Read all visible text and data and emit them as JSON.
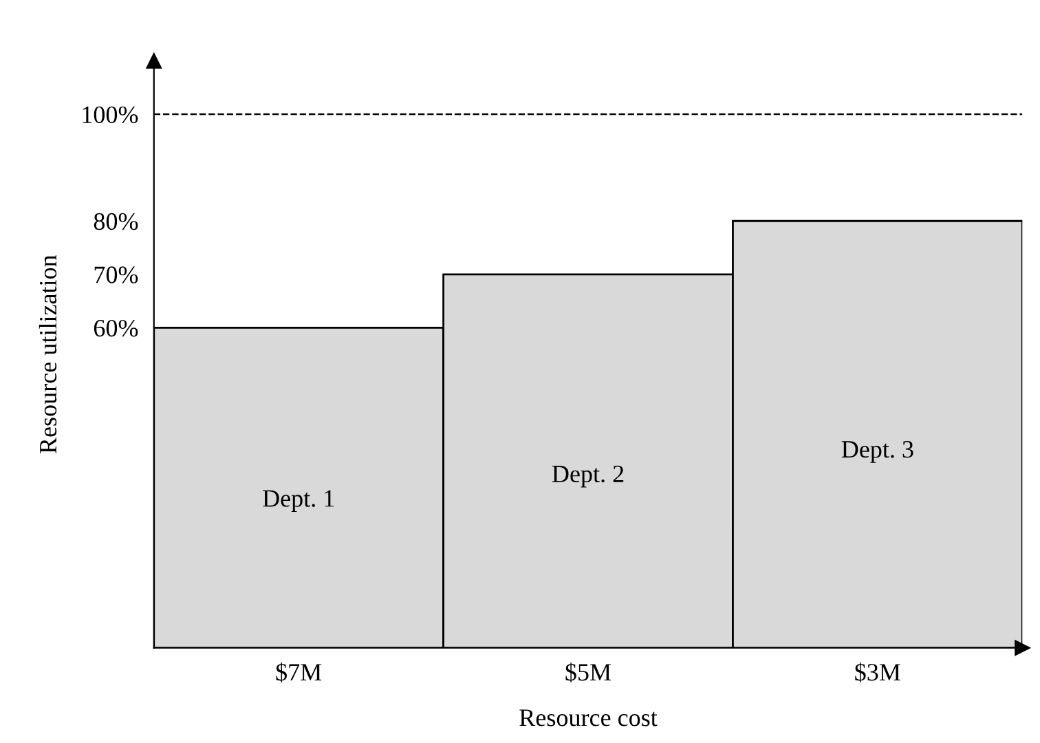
{
  "chart_data": {
    "type": "bar",
    "xlabel": "Resource cost",
    "ylabel": "Resource utilization",
    "categories": [
      "$7M",
      "$5M",
      "$3M"
    ],
    "values": [
      60,
      70,
      80
    ],
    "color": "#d9d9d9",
    "ylim": [
      0,
      110
    ],
    "yticks": [
      {
        "value": 60,
        "label": "60%"
      },
      {
        "value": 70,
        "label": "70%"
      },
      {
        "value": 80,
        "label": "80%"
      },
      {
        "value": 100,
        "label": "100%"
      }
    ],
    "ref_lines": [
      {
        "axis": "y",
        "value": 100,
        "label": null,
        "color": "#000000",
        "line_style": "dashed"
      }
    ],
    "annotations": [
      "Dept. 1",
      "Dept. 2",
      "Dept. 3"
    ],
    "grid": false,
    "legend": false
  }
}
